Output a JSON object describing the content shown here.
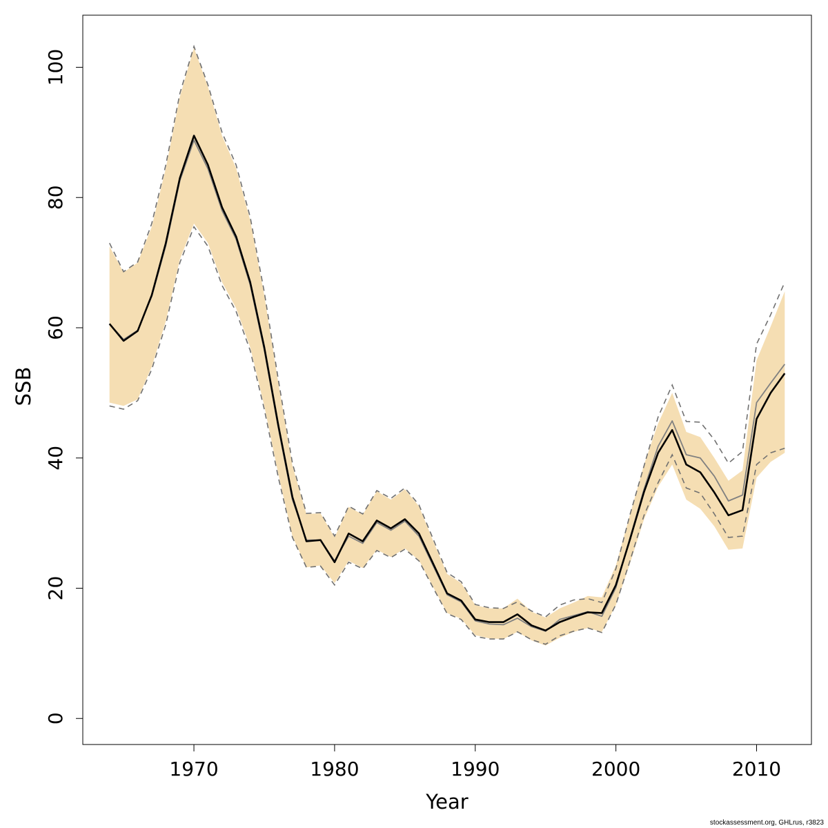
{
  "chart_data": {
    "type": "line",
    "xlabel": "Year",
    "ylabel": "SSB",
    "xlim": [
      1962.1,
      2013.9
    ],
    "ylim": [
      -4,
      108
    ],
    "x_ticks": [
      1970,
      1980,
      1990,
      2000,
      2010
    ],
    "y_ticks": [
      0,
      20,
      40,
      60,
      80,
      100
    ],
    "grid": false,
    "legend": "none",
    "x": [
      1964,
      1965,
      1966,
      1967,
      1968,
      1969,
      1970,
      1971,
      1972,
      1973,
      1974,
      1975,
      1976,
      1977,
      1978,
      1979,
      1980,
      1981,
      1982,
      1983,
      1984,
      1985,
      1986,
      1987,
      1988,
      1989,
      1990,
      1991,
      1992,
      1993,
      1994,
      1995,
      1996,
      1997,
      1998,
      1999,
      2000,
      2001,
      2002,
      2003,
      2004,
      2005,
      2006,
      2007,
      2008,
      2009,
      2010,
      2011,
      2012
    ],
    "series": [
      {
        "role": "estimate",
        "color": "#000000",
        "values": [
          60.6,
          58.0,
          59.5,
          65.0,
          73.0,
          83.0,
          89.5,
          85.0,
          78.5,
          74.0,
          67.0,
          57.0,
          45.0,
          34.0,
          27.2,
          27.4,
          24.0,
          28.4,
          27.2,
          30.4,
          29.2,
          30.6,
          28.4,
          23.8,
          19.2,
          18.1,
          15.2,
          14.8,
          14.8,
          16.0,
          14.3,
          13.5,
          14.8,
          15.6,
          16.3,
          16.2,
          20.5,
          27.5,
          34.8,
          40.8,
          44.3,
          39.0,
          37.8,
          34.7,
          31.2,
          32.0,
          46.0,
          50.0,
          53.0
        ]
      },
      {
        "role": "alternative",
        "color": "#808080",
        "values": [
          60.6,
          58.2,
          59.6,
          64.8,
          72.6,
          82.6,
          88.8,
          84.4,
          78.0,
          73.6,
          66.6,
          56.6,
          44.6,
          33.6,
          27.4,
          27.4,
          24.2,
          28.0,
          26.9,
          30.1,
          28.9,
          30.3,
          28.0,
          23.5,
          19.0,
          17.9,
          15.0,
          14.5,
          14.4,
          15.4,
          14.1,
          13.4,
          15.2,
          15.8,
          16.4,
          15.7,
          20.1,
          27.7,
          35.2,
          41.8,
          45.7,
          40.5,
          40.0,
          37.2,
          33.4,
          34.3,
          48.5,
          51.5,
          54.4
        ]
      }
    ],
    "band": {
      "color": "#f5deb3",
      "lower": [
        48.5,
        48.0,
        49.0,
        54.0,
        61.0,
        70.5,
        76.0,
        73.0,
        67.0,
        63.0,
        57.0,
        48.0,
        37.5,
        28.0,
        23.2,
        23.5,
        20.8,
        24.2,
        23.1,
        25.9,
        24.8,
        26.1,
        24.3,
        20.2,
        16.2,
        15.3,
        12.8,
        12.3,
        12.2,
        13.3,
        12.0,
        11.2,
        12.4,
        13.3,
        13.9,
        13.3,
        17.4,
        23.8,
        30.6,
        35.6,
        39.0,
        33.6,
        32.2,
        29.5,
        25.9,
        26.1,
        37.0,
        39.4,
        40.8
      ],
      "upper": [
        72.5,
        68.5,
        70.0,
        75.5,
        84.5,
        95.5,
        103.0,
        97.0,
        89.5,
        84.5,
        76.5,
        65.0,
        51.5,
        38.8,
        31.4,
        31.5,
        27.8,
        32.5,
        31.3,
        34.9,
        33.6,
        35.2,
        32.6,
        27.3,
        22.2,
        20.8,
        17.4,
        16.9,
        16.9,
        18.4,
        16.4,
        15.5,
        16.9,
        17.8,
        18.8,
        18.6,
        23.5,
        31.3,
        39.0,
        45.3,
        50.0,
        44.0,
        43.2,
        40.0,
        36.5,
        38.1,
        55.0,
        60.2,
        65.6
      ]
    },
    "dashed_bounds": {
      "color": "#707070",
      "lower": [
        48.0,
        47.5,
        48.8,
        53.6,
        60.5,
        70.0,
        75.5,
        72.5,
        66.5,
        62.5,
        56.5,
        47.5,
        37.0,
        27.8,
        23.2,
        23.4,
        20.5,
        24.0,
        23.0,
        25.8,
        24.7,
        26.0,
        24.2,
        20.1,
        16.1,
        15.2,
        12.6,
        12.2,
        12.2,
        13.3,
        12.1,
        11.4,
        12.7,
        13.4,
        13.9,
        13.2,
        17.5,
        24.2,
        31.2,
        36.2,
        40.5,
        35.4,
        34.6,
        31.4,
        27.8,
        28.0,
        39.0,
        40.8,
        41.5
      ],
      "upper": [
        73.0,
        68.6,
        70.1,
        76.0,
        85.0,
        96.0,
        103.2,
        97.3,
        90.0,
        85.0,
        77.0,
        65.5,
        52.0,
        39.2,
        31.5,
        31.6,
        28.0,
        32.6,
        31.4,
        35.0,
        33.8,
        35.4,
        32.8,
        27.6,
        22.4,
        21.0,
        17.5,
        17.0,
        16.9,
        17.9,
        16.5,
        15.6,
        17.4,
        18.2,
        18.4,
        17.8,
        23.0,
        31.3,
        38.8,
        46.3,
        51.2,
        45.6,
        45.5,
        42.8,
        39.2,
        41.0,
        57.5,
        62.0,
        67.0
      ]
    }
  },
  "footnote": "stockassessment.org, GHLrus, r3823"
}
